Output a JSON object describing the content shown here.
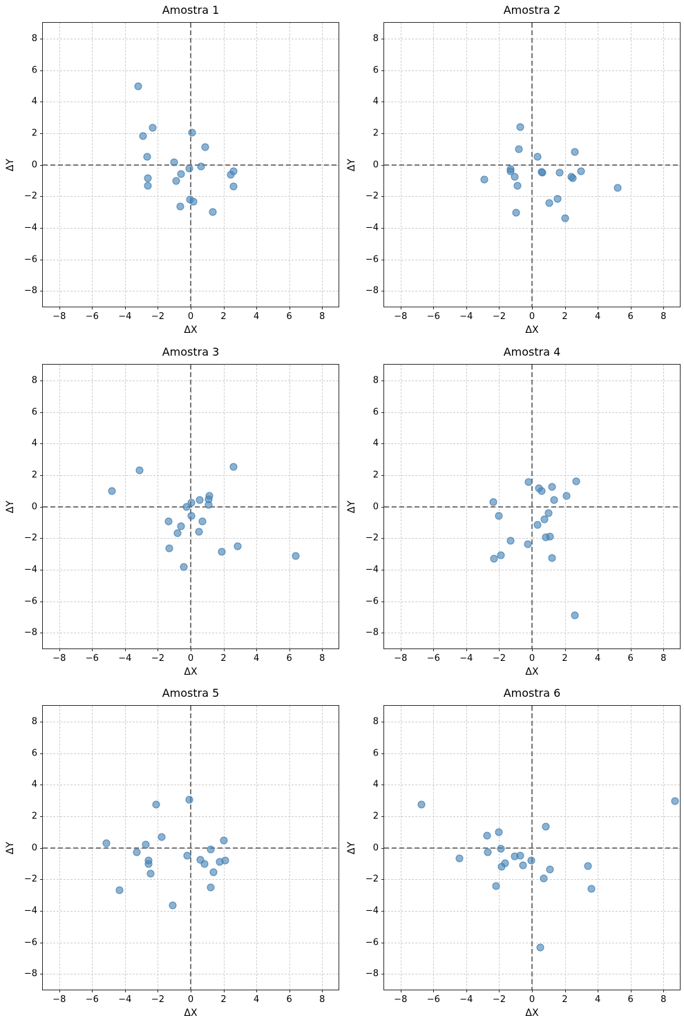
{
  "figure": {
    "background": "#ffffff",
    "marker_color": "#4682B4",
    "marker_alpha": 0.7,
    "grid_color": "#cdcdcd",
    "zero_line_color": "#777777",
    "axis_line_color": "#2a2a2a",
    "text_color": "#000000"
  },
  "chart_data": [
    {
      "type": "scatter",
      "title": "Amostra 1",
      "xlabel": "ΔX",
      "ylabel": "ΔY",
      "xlim": [
        -9,
        9
      ],
      "ylim": [
        -9,
        9
      ],
      "xticks": [
        -8,
        -6,
        -4,
        -2,
        0,
        2,
        4,
        6,
        8
      ],
      "yticks": [
        -8,
        -6,
        -4,
        -2,
        0,
        2,
        4,
        6,
        8
      ],
      "grid": true,
      "zero_lines": true,
      "legend": "none",
      "points": [
        [
          -3.2,
          4.95
        ],
        [
          -2.3,
          2.35
        ],
        [
          -2.9,
          1.8
        ],
        [
          0.1,
          2.05
        ],
        [
          0.9,
          1.1
        ],
        [
          -2.65,
          0.5
        ],
        [
          -1.0,
          0.15
        ],
        [
          -0.1,
          -0.25
        ],
        [
          0.65,
          -0.1
        ],
        [
          -0.6,
          -0.6
        ],
        [
          2.6,
          -0.4
        ],
        [
          2.45,
          -0.65
        ],
        [
          -2.6,
          -0.85
        ],
        [
          -0.9,
          -1.05
        ],
        [
          -2.6,
          -1.35
        ],
        [
          2.6,
          -1.4
        ],
        [
          -0.05,
          -2.2
        ],
        [
          0.15,
          -2.35
        ],
        [
          -0.65,
          -2.65
        ],
        [
          1.35,
          -3.0
        ]
      ]
    },
    {
      "type": "scatter",
      "title": "Amostra 2",
      "xlabel": "ΔX",
      "ylabel": "ΔY",
      "xlim": [
        -9,
        9
      ],
      "ylim": [
        -9,
        9
      ],
      "xticks": [
        -8,
        -6,
        -4,
        -2,
        0,
        2,
        4,
        6,
        8
      ],
      "yticks": [
        -8,
        -6,
        -4,
        -2,
        0,
        2,
        4,
        6,
        8
      ],
      "grid": true,
      "zero_lines": true,
      "legend": "none",
      "points": [
        [
          -0.7,
          2.4
        ],
        [
          -0.8,
          1.0
        ],
        [
          2.6,
          0.8
        ],
        [
          0.35,
          0.5
        ],
        [
          -1.3,
          -0.3
        ],
        [
          -1.3,
          -0.4
        ],
        [
          0.6,
          -0.45
        ],
        [
          0.65,
          -0.5
        ],
        [
          1.7,
          -0.5
        ],
        [
          3.0,
          -0.4
        ],
        [
          2.4,
          -0.75
        ],
        [
          2.5,
          -0.85
        ],
        [
          -1.05,
          -0.75
        ],
        [
          -2.9,
          -0.95
        ],
        [
          -0.9,
          -1.35
        ],
        [
          5.2,
          -1.45
        ],
        [
          1.55,
          -2.15
        ],
        [
          1.05,
          -2.45
        ],
        [
          -0.95,
          -3.05
        ],
        [
          2.0,
          -3.4
        ]
      ]
    },
    {
      "type": "scatter",
      "title": "Amostra 3",
      "xlabel": "ΔX",
      "ylabel": "ΔY",
      "xlim": [
        -9,
        9
      ],
      "ylim": [
        -9,
        9
      ],
      "xticks": [
        -8,
        -6,
        -4,
        -2,
        0,
        2,
        4,
        6,
        8
      ],
      "yticks": [
        -8,
        -6,
        -4,
        -2,
        0,
        2,
        4,
        6,
        8
      ],
      "grid": true,
      "zero_lines": true,
      "legend": "none",
      "points": [
        [
          2.6,
          2.5
        ],
        [
          -3.1,
          2.3
        ],
        [
          -4.8,
          1.0
        ],
        [
          1.15,
          0.7
        ],
        [
          1.1,
          0.45
        ],
        [
          0.55,
          0.4
        ],
        [
          0.05,
          0.25
        ],
        [
          1.1,
          0.1
        ],
        [
          -0.25,
          0.0
        ],
        [
          0.05,
          -0.6
        ],
        [
          -1.35,
          -0.95
        ],
        [
          0.7,
          -0.95
        ],
        [
          -0.6,
          -1.25
        ],
        [
          -0.8,
          -1.7
        ],
        [
          0.5,
          -1.6
        ],
        [
          2.85,
          -2.5
        ],
        [
          1.9,
          -2.85
        ],
        [
          -1.3,
          -2.65
        ],
        [
          6.4,
          -3.15
        ],
        [
          -0.4,
          -3.85
        ]
      ]
    },
    {
      "type": "scatter",
      "title": "Amostra 4",
      "xlabel": "ΔX",
      "ylabel": "ΔY",
      "xlim": [
        -9,
        9
      ],
      "ylim": [
        -9,
        9
      ],
      "xticks": [
        -8,
        -6,
        -4,
        -2,
        0,
        2,
        4,
        6,
        8
      ],
      "yticks": [
        -8,
        -6,
        -4,
        -2,
        0,
        2,
        4,
        6,
        8
      ],
      "grid": true,
      "zero_lines": true,
      "legend": "none",
      "points": [
        [
          -0.2,
          1.55
        ],
        [
          2.7,
          1.6
        ],
        [
          0.4,
          1.15
        ],
        [
          1.2,
          1.25
        ],
        [
          0.6,
          1.0
        ],
        [
          2.1,
          0.7
        ],
        [
          1.35,
          0.4
        ],
        [
          -2.35,
          0.3
        ],
        [
          -2.0,
          -0.6
        ],
        [
          1.0,
          -0.4
        ],
        [
          0.75,
          -0.8
        ],
        [
          0.35,
          -1.15
        ],
        [
          -1.3,
          -2.15
        ],
        [
          0.85,
          -1.95
        ],
        [
          1.1,
          -1.9
        ],
        [
          -0.25,
          -2.4
        ],
        [
          -2.3,
          -3.3
        ],
        [
          -1.9,
          -3.1
        ],
        [
          1.2,
          -3.25
        ],
        [
          2.6,
          -6.9
        ]
      ]
    },
    {
      "type": "scatter",
      "title": "Amostra 5",
      "xlabel": "ΔX",
      "ylabel": "ΔY",
      "xlim": [
        -9,
        9
      ],
      "ylim": [
        -9,
        9
      ],
      "xticks": [
        -8,
        -6,
        -4,
        -2,
        0,
        2,
        4,
        6,
        8
      ],
      "yticks": [
        -8,
        -6,
        -4,
        -2,
        0,
        2,
        4,
        6,
        8
      ],
      "grid": true,
      "zero_lines": true,
      "legend": "none",
      "points": [
        [
          -0.1,
          3.05
        ],
        [
          -2.1,
          2.75
        ],
        [
          -1.75,
          0.7
        ],
        [
          -5.15,
          0.3
        ],
        [
          -2.75,
          0.2
        ],
        [
          2.0,
          0.45
        ],
        [
          -3.3,
          -0.3
        ],
        [
          1.2,
          -0.1
        ],
        [
          -0.2,
          -0.5
        ],
        [
          0.6,
          -0.75
        ],
        [
          -2.55,
          -0.8
        ],
        [
          -2.55,
          -1.05
        ],
        [
          0.85,
          -1.05
        ],
        [
          1.75,
          -0.9
        ],
        [
          2.1,
          -0.8
        ],
        [
          1.4,
          -1.55
        ],
        [
          -2.45,
          -1.65
        ],
        [
          1.2,
          -2.5
        ],
        [
          -4.35,
          -2.7
        ],
        [
          -1.1,
          -3.65
        ]
      ]
    },
    {
      "type": "scatter",
      "title": "Amostra 6",
      "xlabel": "ΔX",
      "ylabel": "ΔY",
      "xlim": [
        -9,
        9
      ],
      "ylim": [
        -9,
        9
      ],
      "xticks": [
        -8,
        -6,
        -4,
        -2,
        0,
        2,
        4,
        6,
        8
      ],
      "yticks": [
        -8,
        -6,
        -4,
        -2,
        0,
        2,
        4,
        6,
        8
      ],
      "grid": true,
      "zero_lines": true,
      "legend": "none",
      "points": [
        [
          -6.75,
          2.75
        ],
        [
          8.7,
          2.95
        ],
        [
          0.85,
          1.35
        ],
        [
          -2.0,
          1.0
        ],
        [
          -2.75,
          0.75
        ],
        [
          -1.9,
          -0.05
        ],
        [
          -2.7,
          -0.3
        ],
        [
          -4.4,
          -0.7
        ],
        [
          -1.05,
          -0.55
        ],
        [
          -0.7,
          -0.5
        ],
        [
          -0.05,
          -0.8
        ],
        [
          -1.65,
          -1.0
        ],
        [
          -1.85,
          -1.2
        ],
        [
          -0.55,
          -1.1
        ],
        [
          1.1,
          -1.4
        ],
        [
          3.4,
          -1.15
        ],
        [
          0.7,
          -1.95
        ],
        [
          -2.2,
          -2.45
        ],
        [
          3.6,
          -2.6
        ],
        [
          0.5,
          -6.35
        ]
      ]
    }
  ]
}
